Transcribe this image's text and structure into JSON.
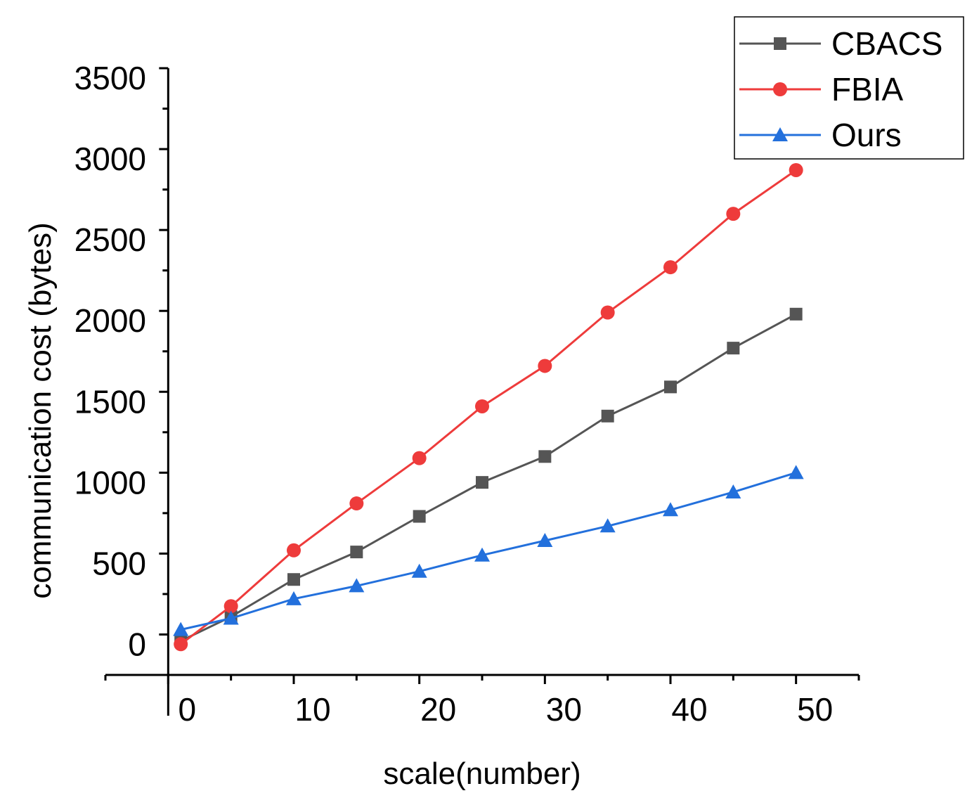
{
  "chart_data": {
    "type": "line",
    "title": "",
    "xlabel": "scale(number)",
    "ylabel": "communication cost (bytes)",
    "xlim": [
      -5,
      55
    ],
    "ylim": [
      -250,
      3500
    ],
    "x_ticks": [
      0,
      10,
      20,
      30,
      40,
      50
    ],
    "y_ticks": [
      0,
      500,
      1000,
      1500,
      2000,
      2500,
      3000,
      3500
    ],
    "legend_position": "top-right",
    "grid": false,
    "x": [
      1,
      5,
      10,
      15,
      20,
      25,
      30,
      35,
      40,
      45,
      50
    ],
    "series": [
      {
        "name": "CBACS",
        "color": "#555555",
        "marker": "square",
        "values": [
          -40,
          110,
          340,
          510,
          730,
          940,
          1100,
          1350,
          1530,
          1770,
          1980
        ]
      },
      {
        "name": "FBIA",
        "color": "#ee3b3b",
        "marker": "circle",
        "values": [
          -60,
          175,
          520,
          810,
          1090,
          1410,
          1660,
          1990,
          2270,
          2600,
          2870
        ]
      },
      {
        "name": "Ours",
        "color": "#2370dc",
        "marker": "triangle",
        "values": [
          30,
          100,
          220,
          300,
          390,
          490,
          580,
          670,
          770,
          880,
          1000
        ]
      }
    ]
  }
}
